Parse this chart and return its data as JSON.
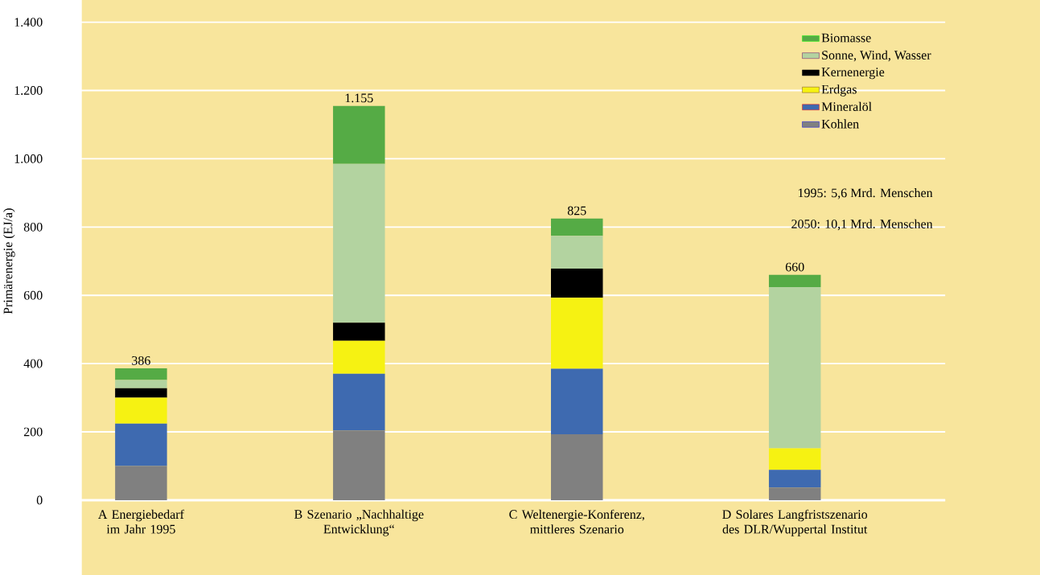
{
  "chart_data": {
    "type": "bar",
    "stacked": true,
    "ylabel": "Primärenergie (EJ/a)",
    "categories": [
      "A Energiebedarf im Jahr 1995",
      "B Szenario „Nachhaltige Entwicklung“",
      "C Weltenergie-Konferenz, mittleres Szenario",
      "D Solares Langfristszenario des DLR/Wuppertal Institut"
    ],
    "series": [
      {
        "name": "Kohlen",
        "color": "#808080",
        "values": [
          100,
          204,
          193,
          37
        ]
      },
      {
        "name": "Mineralöl",
        "color": "#3e6ab0",
        "values": [
          124,
          166,
          192,
          52
        ]
      },
      {
        "name": "Erdgas",
        "color": "#f6f212",
        "values": [
          76,
          97,
          208,
          63
        ]
      },
      {
        "name": "Kernenergie",
        "color": "#000000",
        "values": [
          28,
          53,
          85,
          0
        ]
      },
      {
        "name": "Sonne, Wind, Wasser",
        "color": "#b3d3a0",
        "values": [
          24,
          465,
          96,
          472
        ]
      },
      {
        "name": "Biomasse",
        "color": "#55ab45",
        "values": [
          34,
          170,
          51,
          36
        ]
      }
    ],
    "totals": [
      "386",
      "1.155",
      "825",
      "660"
    ],
    "ylim": [
      0,
      1400
    ],
    "yticks": [
      {
        "value": 0,
        "label": "0"
      },
      {
        "value": 200,
        "label": "200"
      },
      {
        "value": 400,
        "label": "400"
      },
      {
        "value": 600,
        "label": "600"
      },
      {
        "value": 800,
        "label": "800"
      },
      {
        "value": 1000,
        "label": "1.000"
      },
      {
        "value": 1200,
        "label": "1.200"
      },
      {
        "value": 1400,
        "label": "1.400"
      }
    ],
    "grid": "y",
    "legend": "top right",
    "annotations": [
      "1995:  5,6  Mrd. Menschen",
      "2050: 10,1  Mrd. Menschen"
    ]
  }
}
